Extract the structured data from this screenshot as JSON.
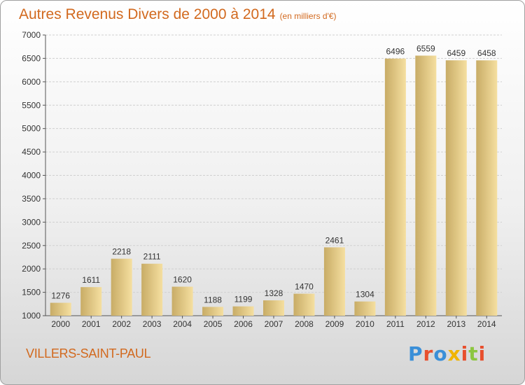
{
  "page": {
    "city": "VILLERS-SAINT-PAUL",
    "brand": {
      "letters": [
        "P",
        "r",
        "o",
        "x",
        "i",
        "t",
        "i"
      ]
    }
  },
  "colors": {
    "title": "#d2691e",
    "bar_light": "#f5dfa0",
    "bar_dark": "#c8ac66",
    "grid": "#cfcfcf",
    "label": "#333333"
  },
  "chart_data": {
    "type": "bar",
    "title": "Autres Revenus Divers de 2000 à 2014",
    "subtitle": "(en milliers d'€)",
    "categories": [
      "2000",
      "2001",
      "2002",
      "2003",
      "2004",
      "2005",
      "2006",
      "2007",
      "2008",
      "2009",
      "2010",
      "2011",
      "2012",
      "2013",
      "2014"
    ],
    "values": [
      1276,
      1611,
      2218,
      2111,
      1620,
      1188,
      1199,
      1328,
      1470,
      2461,
      1304,
      6496,
      6559,
      6459,
      6458
    ],
    "ylim": [
      1000,
      7000
    ],
    "yticks": [
      1000,
      1500,
      2000,
      2500,
      3000,
      3500,
      4000,
      4500,
      5000,
      5500,
      6000,
      6500,
      7000
    ],
    "grid": true,
    "data_labels": true
  }
}
